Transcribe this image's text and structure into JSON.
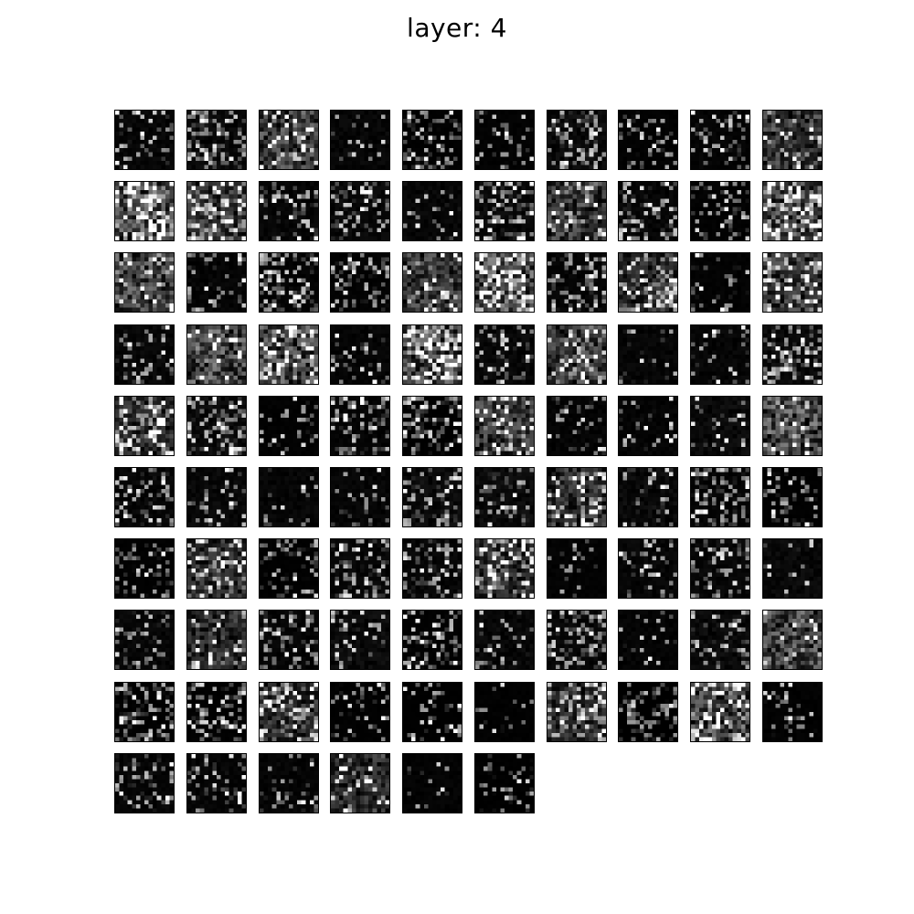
{
  "figure": {
    "title": "layer: 4",
    "background": "#ffffff"
  },
  "feature_maps": {
    "count": 96,
    "columns": 10,
    "rows": 10,
    "colormap": "gray",
    "panel_edge_color": "#000000"
  }
}
